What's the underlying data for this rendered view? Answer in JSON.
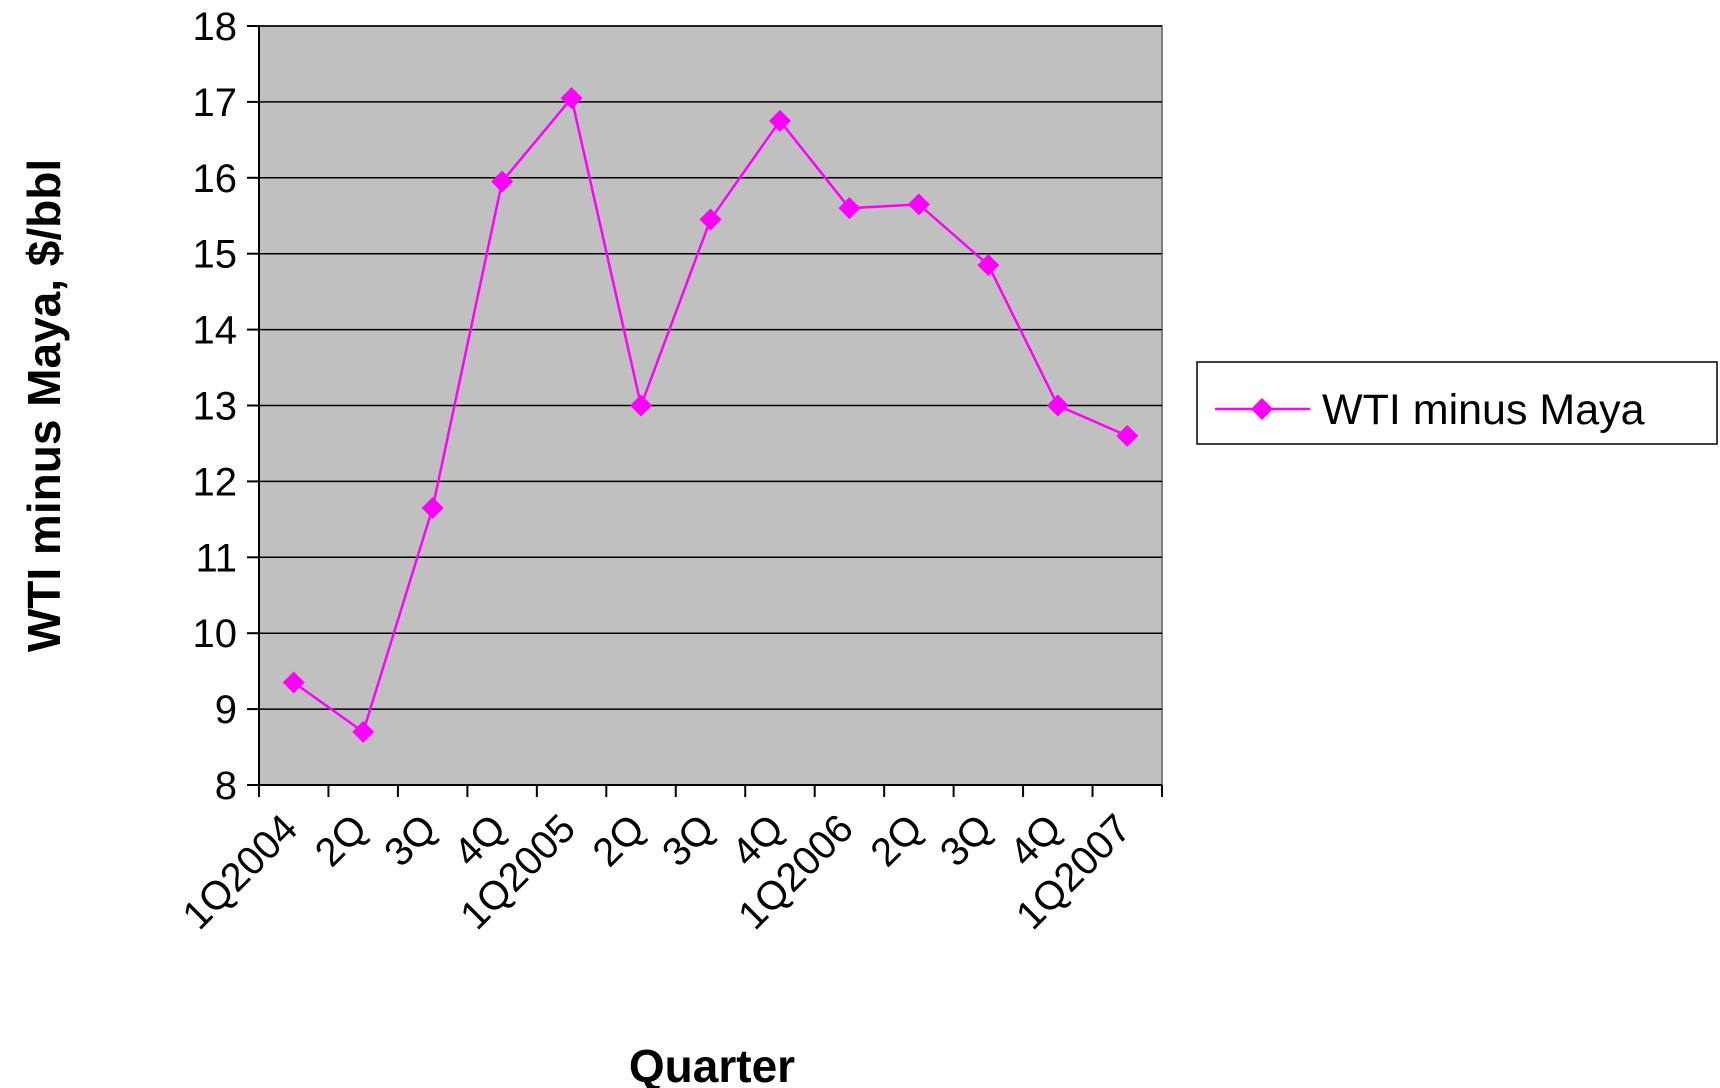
{
  "chart_data": {
    "type": "line",
    "title": "",
    "xlabel": "Quarter",
    "ylabel": "WTI minus Maya, $/bbl",
    "categories": [
      "1Q2004",
      "2Q",
      "3Q",
      "4Q",
      "1Q2005",
      "2Q",
      "3Q",
      "4Q",
      "1Q2006",
      "2Q",
      "3Q",
      "4Q",
      "1Q2007"
    ],
    "series": [
      {
        "name": "WTI minus Maya",
        "values": [
          9.35,
          8.7,
          11.65,
          15.95,
          17.05,
          13.0,
          15.45,
          16.75,
          15.6,
          15.65,
          14.85,
          13.0,
          12.6
        ],
        "color": "#ff00ff",
        "marker": "diamond"
      }
    ],
    "ylim": [
      8,
      18
    ],
    "yticks": [
      8,
      9,
      10,
      11,
      12,
      13,
      14,
      15,
      16,
      17,
      18
    ],
    "grid": true,
    "plot_background": "#c0c0c0",
    "legend": "right"
  }
}
